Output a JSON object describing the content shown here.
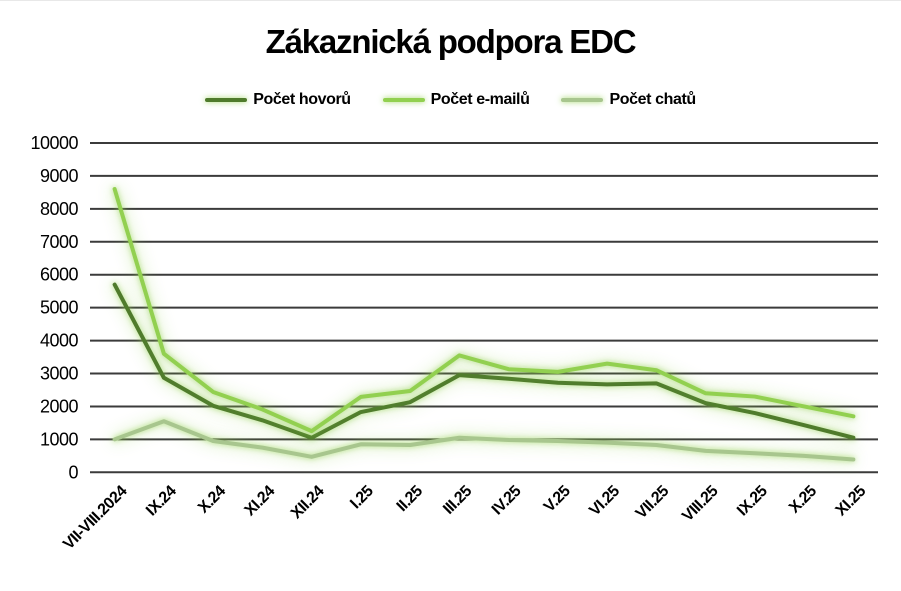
{
  "chart_data": {
    "type": "line",
    "title": "Zákaznická podpora EDC",
    "categories": [
      "VII-VIII.2024",
      "IX.24",
      "X.24",
      "XI.24",
      "XII.24",
      "I.25",
      "II.25",
      "III.25",
      "IV.25",
      "V.25",
      "VI.25",
      "VII.25",
      "VIII.25",
      "IX.25",
      "X.25",
      "XI.25"
    ],
    "series": [
      {
        "name": "Počet hovorů",
        "color": "#4f7b2c",
        "values": [
          5700,
          2870,
          2020,
          1580,
          1050,
          1830,
          2130,
          2950,
          2840,
          2720,
          2670,
          2700,
          2100,
          1800,
          1430,
          1050
        ]
      },
      {
        "name": "Počet e-mailů",
        "color": "#92d050",
        "values": [
          8600,
          3600,
          2440,
          1910,
          1250,
          2290,
          2470,
          3550,
          3130,
          3050,
          3300,
          3100,
          2400,
          2300,
          2000,
          1700
        ]
      },
      {
        "name": "Počet chatů",
        "color": "#a8c68e",
        "values": [
          1000,
          1550,
          950,
          750,
          470,
          850,
          830,
          1050,
          980,
          950,
          900,
          830,
          650,
          580,
          500,
          390
        ]
      }
    ],
    "ylim": [
      0,
      10000
    ],
    "ytick_step": 1000,
    "xlabel": "",
    "ylabel": "",
    "grid": "horizontal",
    "legend_position": "top",
    "glow_color": "#92d050",
    "gridline_color": "#3b3b3b",
    "background_color": "#ffffff"
  }
}
